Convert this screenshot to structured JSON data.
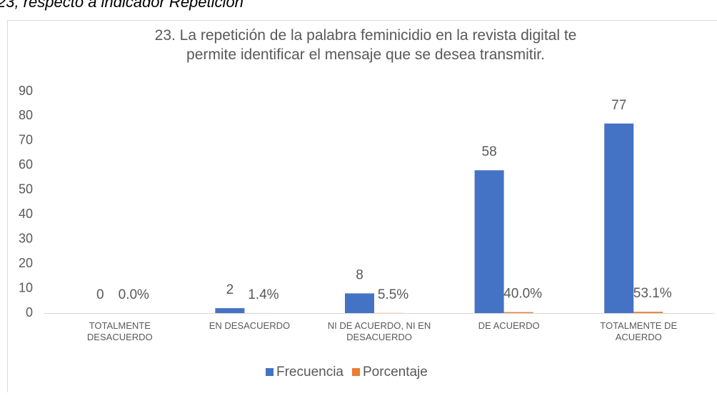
{
  "caption": "23, respecto a indicador Repetición",
  "chart_data": {
    "type": "bar",
    "title": "23. La repetición de la palabra feminicidio en la revista digital te permite identificar el mensaje que se desea transmitir.",
    "categories": [
      "TOTALMENTE DESACUERDO",
      "EN DESACUERDO",
      "NI DE ACUERDO, NI EN DESACUERDO",
      "DE ACUERDO",
      "TOTALMENTE DE ACUERDO"
    ],
    "series": [
      {
        "name": "Frecuencia",
        "color": "#4472c4",
        "values": [
          0,
          2,
          8,
          58,
          77
        ]
      },
      {
        "name": "Porcentaje",
        "color": "#ed7d31",
        "values": [
          0.0,
          0.014,
          0.055,
          0.4,
          0.531
        ],
        "value_labels": [
          "0.0%",
          "1.4%",
          "5.5%",
          "40.0%",
          "53.1%"
        ]
      }
    ],
    "ylim": [
      0,
      90
    ],
    "yticks": [
      0,
      10,
      20,
      30,
      40,
      50,
      60,
      70,
      80,
      90
    ],
    "grid": false,
    "legend": "bottom"
  }
}
